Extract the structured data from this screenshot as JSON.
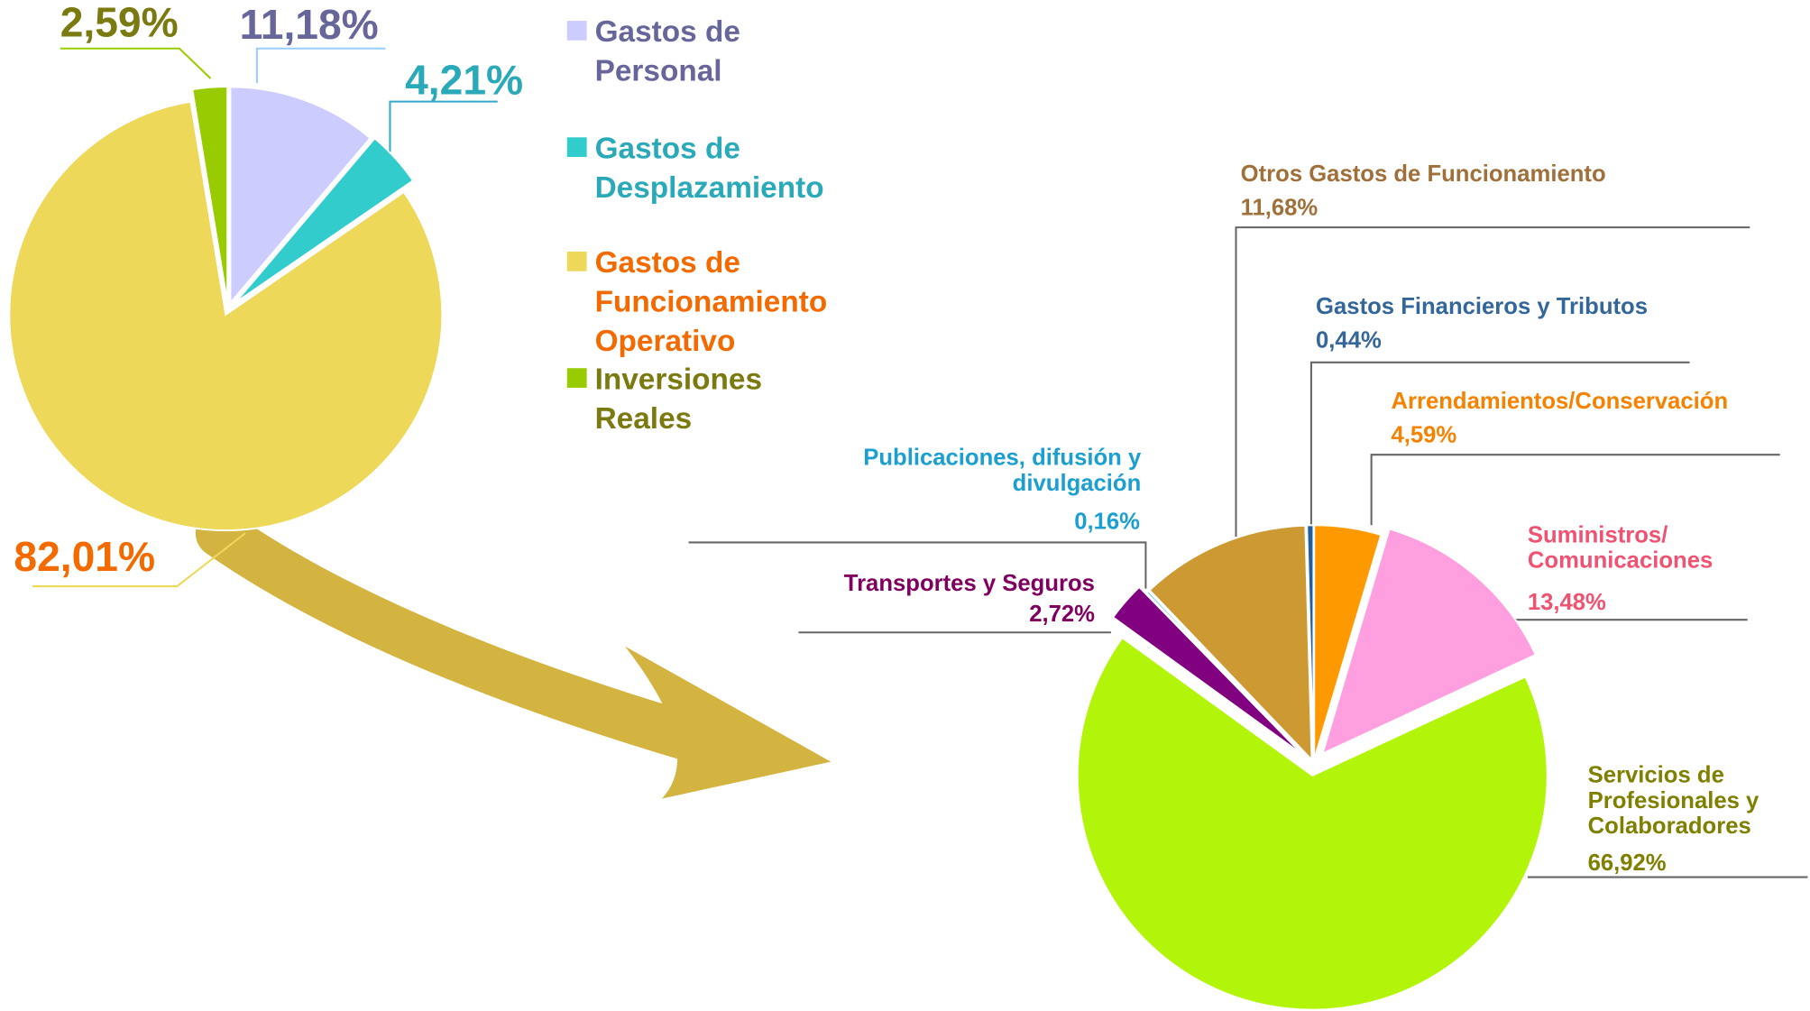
{
  "chart_data": [
    {
      "type": "pie",
      "categories": [
        "Gastos de Personal",
        "Gastos de Desplazamiento",
        "Gastos de Funcionamiento Operativo",
        "Inversiones Reales"
      ],
      "values": [
        11.18,
        4.21,
        82.01,
        2.59
      ],
      "value_labels": [
        "11,18%",
        "4,21%",
        "82,01%",
        "2,59%"
      ],
      "colors": [
        "#ccccff",
        "#33cccc",
        "#eed85a",
        "#99cc00"
      ],
      "label_colors": [
        "#66669a",
        "#2aaab8",
        "#f26a00",
        "#7a7a10"
      ],
      "legend": "right"
    },
    {
      "type": "pie",
      "categories": [
        "Arrendamientos/Conservación",
        "Suministros/ Comunicaciones",
        "Servicios de Profesionales y Colaboradores",
        "Transportes y Seguros",
        "Publicaciones, difusión y divulgación",
        "Otros Gastos de Funcionamiento",
        "Gastos Financieros y Tributos"
      ],
      "values": [
        4.59,
        13.48,
        66.92,
        2.72,
        0.16,
        11.68,
        0.44
      ],
      "value_labels": [
        "4,59%",
        "13,48%",
        "66,92%",
        "2,72%",
        "0,16%",
        "11,68%",
        "0,44%"
      ],
      "colors": [
        "#ff9900",
        "#ff9fdf",
        "#b3f50a",
        "#800080",
        "#33aadd",
        "#cc9933",
        "#1f5fa0"
      ],
      "label_colors": [
        "#f58200",
        "#f05272",
        "#7f7f00",
        "#800060",
        "#1a9fd0",
        "#a0703a",
        "#336699"
      ]
    }
  ]
}
